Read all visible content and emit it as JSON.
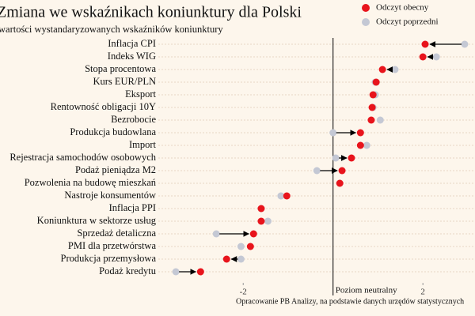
{
  "chart_data": {
    "type": "dot-change",
    "title": "Zmiana we wskaźnikach koniunktury dla Polski",
    "subtitle": "wartości wystandaryzowanych wskaźników koniunktury",
    "caption": "Opracowanie PB Analizy, na podstawie danych urzędów statystycznych",
    "categories": [
      "Inflacja CPI",
      "Indeks WIG",
      "Stopa procentowa",
      "Kurs EUR/PLN",
      "Eksport",
      "Rentowność obligacji 10Y",
      "Bezrobocie",
      "Produkcja budowlana",
      "Import",
      "Rejestracja samochodów osobowych",
      "Podaż pieniądza M2",
      "Pozwolenia na budowę mieszkań",
      "Nastroje konsumentów",
      "Inflacja PPI",
      "Koniunktura w sektorze usług",
      "Sprzedaż detaliczna",
      "PMI dla przetwórstwa",
      "Produkcja przemysłowa",
      "Podaż kredytu"
    ],
    "series": [
      {
        "name": "Odczyt obecny",
        "color": "#e8141c",
        "values": [
          2.05,
          2.0,
          1.1,
          0.96,
          0.89,
          0.87,
          0.85,
          0.61,
          0.61,
          0.41,
          0.2,
          0.15,
          -1.03,
          -1.6,
          -1.6,
          -1.77,
          -1.84,
          -2.37,
          -2.95
        ]
      },
      {
        "name": "Odczyt poprzedni",
        "color": "#c4c8d4",
        "values": [
          2.93,
          2.3,
          1.38,
          0.94,
          0.94,
          0.89,
          1.05,
          0,
          0.75,
          0.06,
          -0.36,
          0.15,
          -1.16,
          -1.6,
          -1.45,
          -2.6,
          -2.05,
          -2.05,
          -3.5
        ]
      }
    ],
    "xlim": [
      -3.89,
      3.16
    ],
    "xticks": [
      -2,
      2
    ],
    "reference_line": {
      "value": 0,
      "label": "Poziom neutralny"
    },
    "grid": true,
    "legend": "top-right"
  }
}
